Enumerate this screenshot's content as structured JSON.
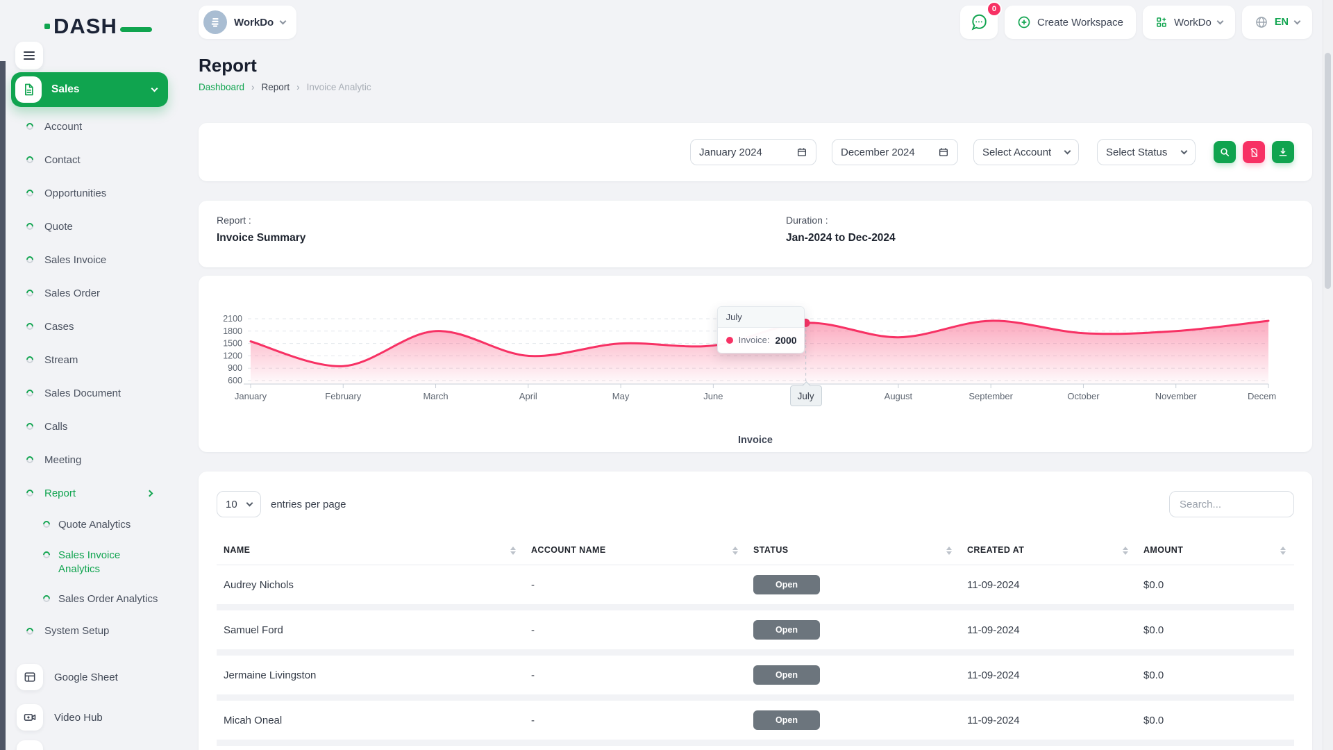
{
  "theme": {
    "primary_green": "#10a44f",
    "accent_pink": "#f73164",
    "status_badge_gray": "#6c757d",
    "background": "#f2f3f6"
  },
  "sidebar": {
    "logo": "DASH",
    "section": {
      "label": "Sales"
    },
    "items": [
      {
        "label": "Account"
      },
      {
        "label": "Contact"
      },
      {
        "label": "Opportunities"
      },
      {
        "label": "Quote"
      },
      {
        "label": "Sales Invoice"
      },
      {
        "label": "Sales Order"
      },
      {
        "label": "Cases"
      },
      {
        "label": "Stream"
      },
      {
        "label": "Sales Document"
      },
      {
        "label": "Calls"
      },
      {
        "label": "Meeting"
      },
      {
        "label": "Report",
        "active": true,
        "expanded": true,
        "children": [
          {
            "label": "Quote Analytics"
          },
          {
            "label": "Sales Invoice Analytics",
            "active": true
          },
          {
            "label": "Sales Order Analytics"
          }
        ]
      },
      {
        "label": "System Setup"
      }
    ],
    "apps": [
      {
        "label": "Google Sheet",
        "icon": "sheet-icon"
      },
      {
        "label": "Video Hub",
        "icon": "video-icon"
      }
    ]
  },
  "header": {
    "workspace_label": "WorkDo",
    "messages_badge": "0",
    "create_workspace_label": "Create Workspace",
    "workdo_menu_label": "WorkDo",
    "language": "EN"
  },
  "page": {
    "title": "Report",
    "breadcrumb": [
      "Dashboard",
      "Report",
      "Invoice Analytic"
    ]
  },
  "filters": {
    "start_date": "January 2024",
    "end_date": "December 2024",
    "account_placeholder": "Select Account",
    "status_placeholder": "Select Status"
  },
  "summary": {
    "report_label": "Report :",
    "report_value": "Invoice Summary",
    "duration_label": "Duration :",
    "duration_value": "Jan-2024 to Dec-2024"
  },
  "chart_data": {
    "type": "area",
    "x": [
      "January",
      "February",
      "March",
      "April",
      "May",
      "June",
      "July",
      "August",
      "September",
      "October",
      "November",
      "December"
    ],
    "series": [
      {
        "name": "Invoice",
        "values": [
          1550,
          950,
          1800,
          1200,
          1500,
          1450,
          2000,
          1650,
          2050,
          1750,
          1800,
          2050
        ]
      }
    ],
    "ylim": [
      600,
      2100
    ],
    "yticks": [
      2100,
      1800,
      1500,
      1200,
      900,
      600
    ],
    "grid": "horizontal-dashed",
    "legend": "Invoice",
    "legend_position": "bottom",
    "line_color": "#f73164",
    "tooltip": {
      "month": "July",
      "series_label": "Invoice:",
      "value": "2000"
    },
    "axis_pointer_label": "July"
  },
  "table": {
    "entries_per_page_value": "10",
    "entries_per_page_label": "entries per page",
    "search_placeholder": "Search...",
    "columns": [
      "NAME",
      "ACCOUNT NAME",
      "STATUS",
      "CREATED AT",
      "AMOUNT"
    ],
    "rows": [
      {
        "name": "Audrey Nichols",
        "account": "-",
        "status": "Open",
        "created": "11-09-2024",
        "amount": "$0.0"
      },
      {
        "name": "Samuel Ford",
        "account": "-",
        "status": "Open",
        "created": "11-09-2024",
        "amount": "$0.0"
      },
      {
        "name": "Jermaine Livingston",
        "account": "-",
        "status": "Open",
        "created": "11-09-2024",
        "amount": "$0.0"
      },
      {
        "name": "Micah Oneal",
        "account": "-",
        "status": "Open",
        "created": "11-09-2024",
        "amount": "$0.0"
      }
    ]
  }
}
